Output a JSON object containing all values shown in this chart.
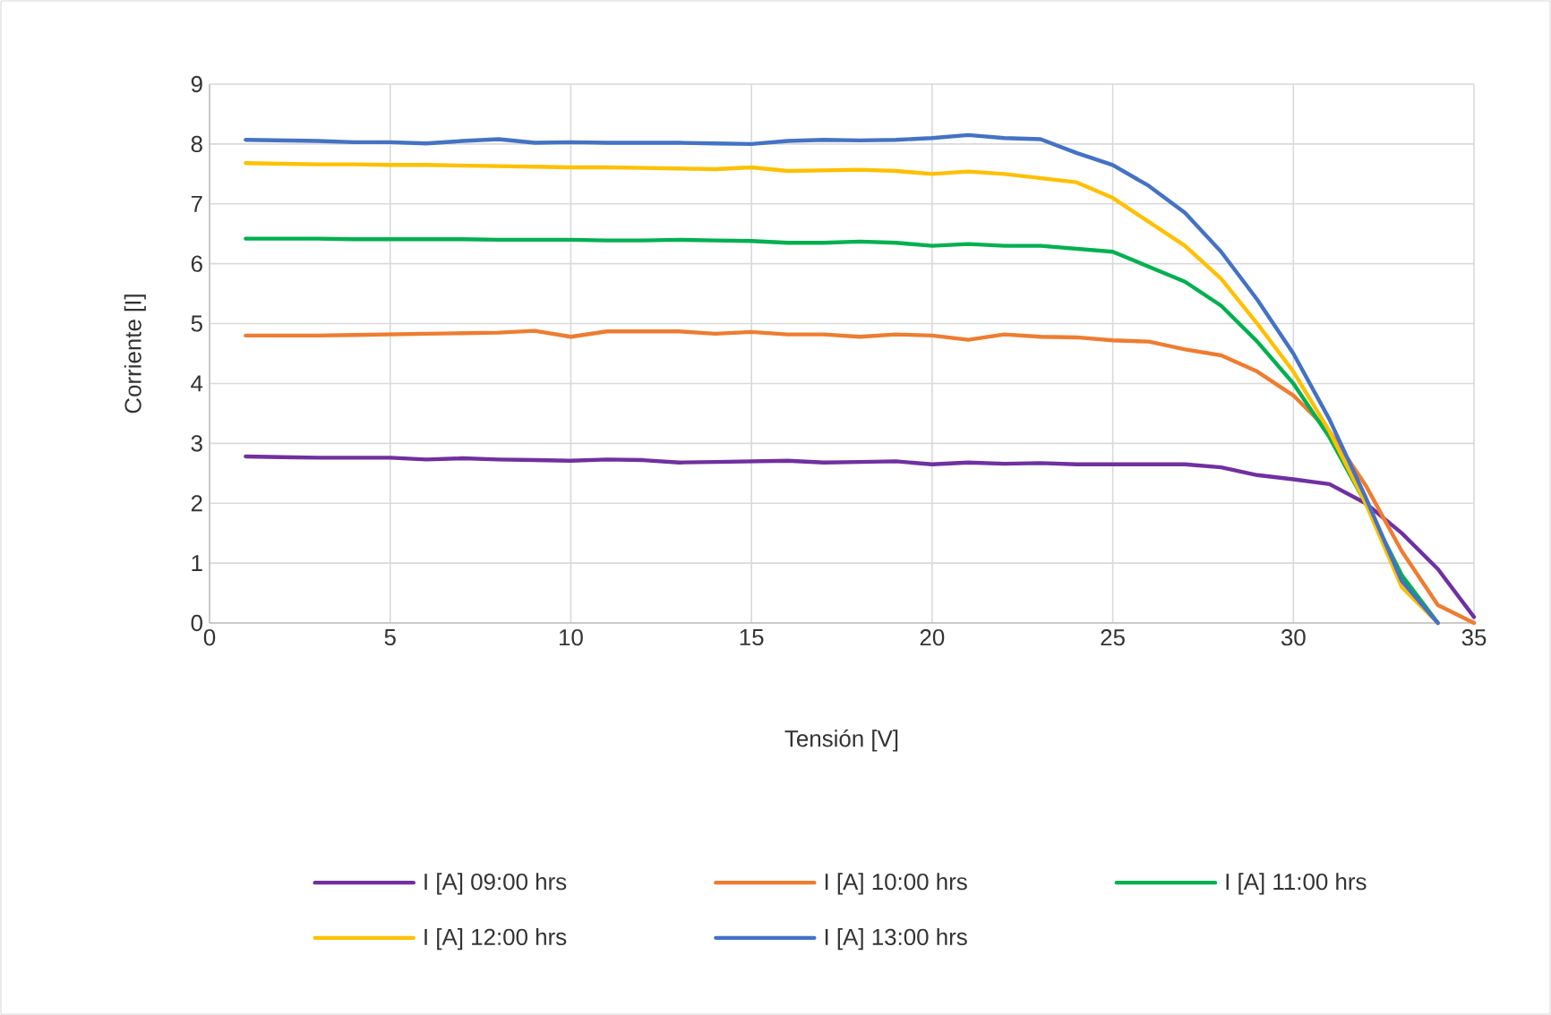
{
  "chart_data": {
    "type": "line",
    "xlabel": "Tensión  [V]",
    "ylabel": "Corriente [I]",
    "x": [
      1,
      2,
      3,
      4,
      5,
      6,
      7,
      8,
      9,
      10,
      11,
      12,
      13,
      14,
      15,
      16,
      17,
      18,
      19,
      20,
      21,
      22,
      23,
      24,
      25,
      26,
      27,
      28,
      29,
      30,
      31,
      32,
      33,
      34,
      35
    ],
    "series": [
      {
        "name": "I [A] 09:00 hrs",
        "color": "#7030a0",
        "values": [
          2.78,
          2.77,
          2.76,
          2.76,
          2.76,
          2.73,
          2.75,
          2.73,
          2.72,
          2.71,
          2.73,
          2.72,
          2.68,
          2.69,
          2.7,
          2.71,
          2.68,
          2.69,
          2.7,
          2.65,
          2.68,
          2.66,
          2.67,
          2.65,
          2.65,
          2.65,
          2.65,
          2.6,
          2.47,
          2.4,
          2.32,
          2.0,
          1.5,
          0.9,
          0.1
        ]
      },
      {
        "name": "I [A] 10:00 hrs",
        "color": "#ed7d31",
        "values": [
          4.8,
          4.8,
          4.8,
          4.81,
          4.82,
          4.83,
          4.84,
          4.85,
          4.88,
          4.78,
          4.87,
          4.87,
          4.87,
          4.83,
          4.86,
          4.82,
          4.82,
          4.78,
          4.82,
          4.8,
          4.73,
          4.82,
          4.78,
          4.77,
          4.72,
          4.7,
          4.57,
          4.47,
          4.2,
          3.8,
          3.2,
          2.3,
          1.2,
          0.3,
          0
        ]
      },
      {
        "name": "I [A] 11:00 hrs",
        "color": "#00b050",
        "values": [
          6.42,
          6.42,
          6.42,
          6.41,
          6.41,
          6.41,
          6.41,
          6.4,
          6.4,
          6.4,
          6.39,
          6.39,
          6.4,
          6.39,
          6.38,
          6.35,
          6.35,
          6.37,
          6.35,
          6.3,
          6.33,
          6.3,
          6.3,
          6.25,
          6.2,
          5.95,
          5.7,
          5.3,
          4.7,
          4.0,
          3.1,
          2.0,
          0.8,
          0,
          null
        ]
      },
      {
        "name": "I [A] 12:00 hrs",
        "color": "#ffc000",
        "values": [
          7.68,
          7.67,
          7.66,
          7.66,
          7.65,
          7.65,
          7.64,
          7.63,
          7.62,
          7.61,
          7.61,
          7.6,
          7.59,
          7.58,
          7.61,
          7.55,
          7.56,
          7.57,
          7.55,
          7.5,
          7.54,
          7.5,
          7.43,
          7.36,
          7.1,
          6.7,
          6.3,
          5.75,
          5.0,
          4.2,
          3.2,
          2.0,
          0.6,
          0,
          null
        ]
      },
      {
        "name": "I [A] 13:00 hrs",
        "color": "#4472c4",
        "values": [
          8.07,
          8.06,
          8.05,
          8.03,
          8.03,
          8.01,
          8.05,
          8.08,
          8.02,
          8.03,
          8.02,
          8.02,
          8.02,
          8.01,
          8.0,
          8.05,
          8.07,
          8.06,
          8.07,
          8.1,
          8.15,
          8.1,
          8.08,
          7.85,
          7.65,
          7.3,
          6.85,
          6.2,
          5.4,
          4.5,
          3.4,
          2.1,
          0.7,
          0,
          null
        ]
      }
    ],
    "xlim": [
      0,
      35
    ],
    "xticks": [
      0,
      5,
      10,
      15,
      20,
      25,
      30,
      35
    ],
    "ylim": [
      0,
      9
    ],
    "yticks": [
      0,
      1,
      2,
      3,
      4,
      5,
      6,
      7,
      8,
      9
    ],
    "grid": true,
    "legend": "bottom",
    "marker": "none",
    "line_style": "solid"
  }
}
